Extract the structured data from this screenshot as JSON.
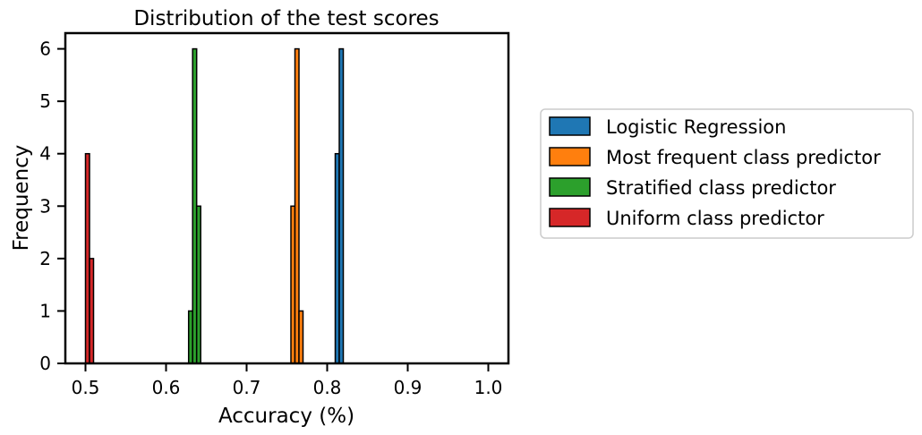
{
  "chart_data": {
    "type": "bar",
    "title": "Distribution of the test scores",
    "xlabel": "Accuracy (%)",
    "ylabel": "Frequency",
    "xlim": [
      0.475,
      1.025
    ],
    "ylim": [
      0,
      6.3
    ],
    "xticks": [
      0.5,
      0.6,
      0.7,
      0.8,
      0.9,
      1.0
    ],
    "xtick_labels": [
      "0.5",
      "0.6",
      "0.7",
      "0.8",
      "0.9",
      "1.0"
    ],
    "yticks": [
      0,
      1,
      2,
      3,
      4,
      5,
      6
    ],
    "ytick_labels": [
      "0",
      "1",
      "2",
      "3",
      "4",
      "5",
      "6"
    ],
    "bin_width": 0.005,
    "grid": false,
    "legend_position": "right-outside",
    "series": [
      {
        "name": "Logistic Regression",
        "color": "#1f77b4",
        "bins": [
          {
            "x0": 0.81,
            "x1": 0.815,
            "count": 4
          },
          {
            "x0": 0.815,
            "x1": 0.82,
            "count": 6
          }
        ]
      },
      {
        "name": "Most frequent class predictor",
        "color": "#ff7f0e",
        "bins": [
          {
            "x0": 0.755,
            "x1": 0.76,
            "count": 3
          },
          {
            "x0": 0.76,
            "x1": 0.765,
            "count": 6
          },
          {
            "x0": 0.765,
            "x1": 0.77,
            "count": 1
          }
        ]
      },
      {
        "name": "Stratified class predictor",
        "color": "#2ca02c",
        "bins": [
          {
            "x0": 0.628,
            "x1": 0.633,
            "count": 1
          },
          {
            "x0": 0.633,
            "x1": 0.638,
            "count": 6
          },
          {
            "x0": 0.638,
            "x1": 0.643,
            "count": 3
          }
        ]
      },
      {
        "name": "Uniform class predictor",
        "color": "#d62728",
        "bins": [
          {
            "x0": 0.5,
            "x1": 0.505,
            "count": 4
          },
          {
            "x0": 0.505,
            "x1": 0.51,
            "count": 2
          }
        ]
      }
    ]
  }
}
